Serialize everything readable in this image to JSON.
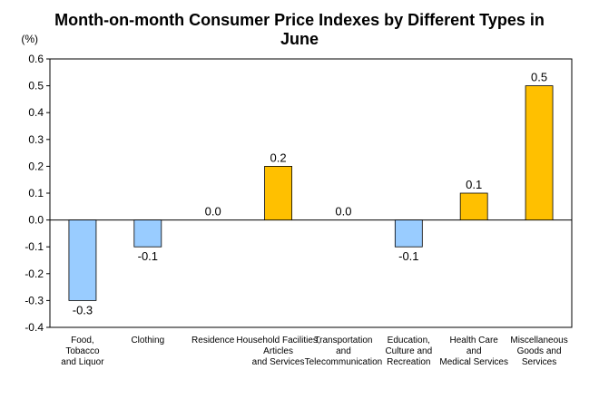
{
  "chart_data": {
    "type": "bar",
    "title": "Month-on-month Consumer Price Indexes by Different Types in June",
    "unit_label": "(%)",
    "xlabel": "",
    "ylabel": "",
    "ylim": [
      -0.4,
      0.6
    ],
    "yticks": [
      "0.6",
      "0.5",
      "0.4",
      "0.3",
      "0.2",
      "0.1",
      "0.0",
      "-0.1",
      "-0.2",
      "-0.3",
      "-0.4"
    ],
    "grid": false,
    "legend": "none",
    "categories": [
      [
        "Food,",
        "Tobacco",
        "and Liquor"
      ],
      [
        "Clothing"
      ],
      [
        "Residence"
      ],
      [
        "Household Facilities,",
        "Articles",
        "and Services"
      ],
      [
        "Transportation",
        "and",
        "Telecommunication"
      ],
      [
        "Education,",
        "Culture and",
        "Recreation"
      ],
      [
        "Health Care",
        "and",
        "Medical Services"
      ],
      [
        "Miscellaneous",
        "Goods and",
        "Services"
      ]
    ],
    "values": [
      -0.3,
      -0.1,
      0.0,
      0.2,
      0.0,
      -0.1,
      0.1,
      0.5
    ],
    "value_labels": [
      "-0.3",
      "-0.1",
      "0.0",
      "0.2",
      "0.0",
      "-0.1",
      "0.1",
      "0.5"
    ],
    "colors": {
      "positive": "#FFC000",
      "negative": "#99CCFF",
      "border": "#000000"
    }
  }
}
